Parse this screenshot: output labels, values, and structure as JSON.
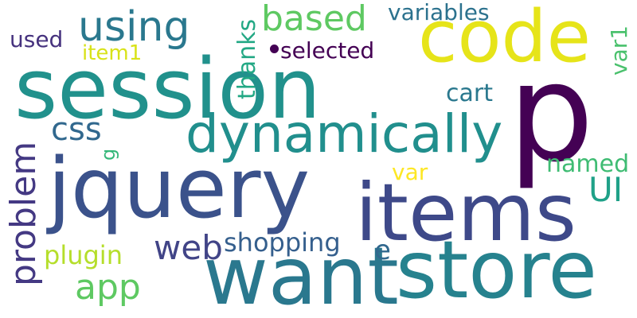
{
  "words": [
    {
      "text": "p",
      "color": "#440154"
    },
    {
      "text": "session",
      "color": "#21918c"
    },
    {
      "text": "jquery",
      "color": "#3b528b"
    },
    {
      "text": "items",
      "color": "#3e4989"
    },
    {
      "text": "want",
      "color": "#2a788e"
    },
    {
      "text": "store",
      "color": "#26828e"
    },
    {
      "text": "code",
      "color": "#e6e419"
    },
    {
      "text": "dynamically",
      "color": "#218f8d"
    },
    {
      "text": "using",
      "color": "#2a788e"
    },
    {
      "text": "based",
      "color": "#5ec962"
    },
    {
      "text": "variables",
      "color": "#2c728e"
    },
    {
      "text": "used",
      "color": "#46327e"
    },
    {
      "text": "item1",
      "color": "#d8e219"
    },
    {
      "text": "selected",
      "color": "#440154"
    },
    {
      "text": "thanks",
      "color": "#22a884"
    },
    {
      "text": "var1",
      "color": "#4ac16d"
    },
    {
      "text": "cart",
      "color": "#2a788e"
    },
    {
      "text": "css",
      "color": "#31688e"
    },
    {
      "text": "g",
      "color": "#35b779"
    },
    {
      "text": "problem",
      "color": "#443983"
    },
    {
      "text": "var",
      "color": "#fde725"
    },
    {
      "text": "named",
      "color": "#3fbc73"
    },
    {
      "text": "UI",
      "color": "#1fa188"
    },
    {
      "text": "web",
      "color": "#414487"
    },
    {
      "text": "shopping",
      "color": "#355f8d"
    },
    {
      "text": "plugin",
      "color": "#b5de2b"
    },
    {
      "text": "e",
      "color": "#31688e"
    },
    {
      "text": "app",
      "color": "#5ec962"
    }
  ]
}
